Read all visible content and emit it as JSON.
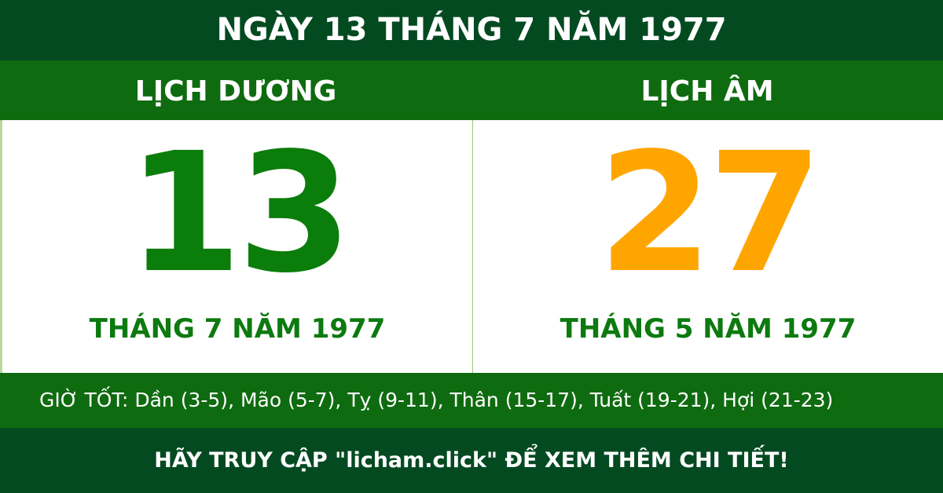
{
  "title": "NGÀY 13 THÁNG 7 NĂM 1977",
  "solar": {
    "label": "LỊCH DƯƠNG",
    "day": "13",
    "month_year": "THÁNG 7 NĂM 1977",
    "color": "#0b7d0b"
  },
  "lunar": {
    "label": "LỊCH ÂM",
    "day": "27",
    "month_year": "THÁNG 5 NĂM 1977",
    "color": "#ffa500"
  },
  "good_hours": "GIỜ TỐT: Dần (3-5), Mão (5-7), Tỵ (9-11), Thân (15-17), Tuất (19-21), Hợi (21-23)",
  "footer": "HÃY TRUY CẬP \"licham.click\" ĐỂ XEM THÊM CHI TIẾT!"
}
